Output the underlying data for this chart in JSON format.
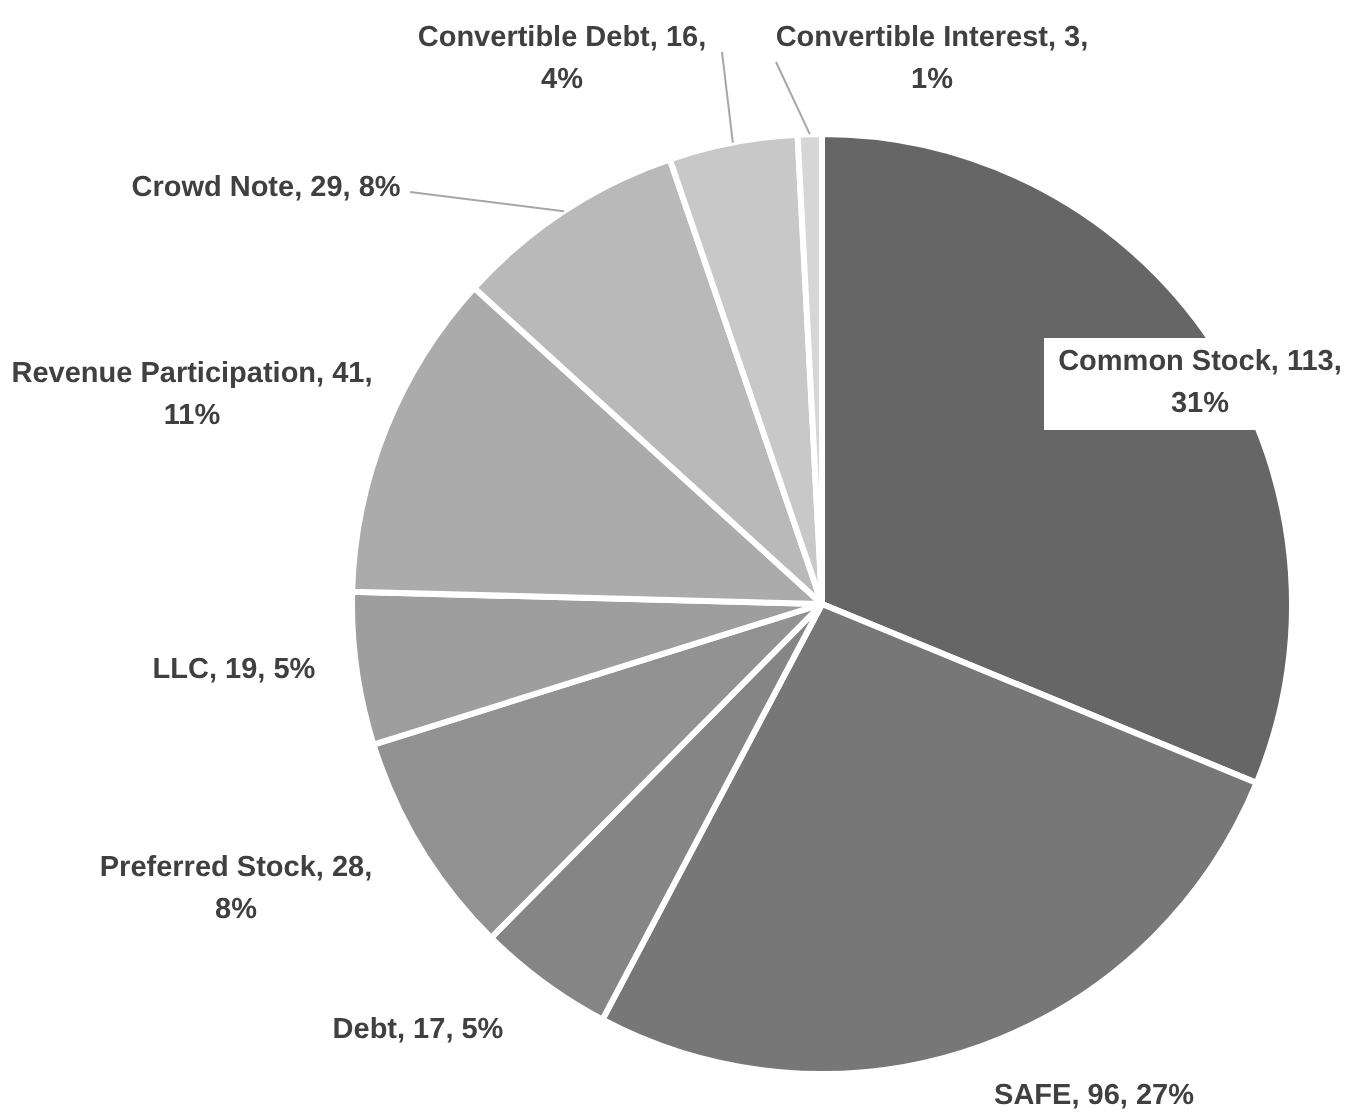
{
  "chart_data": {
    "type": "pie",
    "categories": [
      "Common Stock",
      "SAFE",
      "Debt",
      "Preferred Stock",
      "LLC",
      "Revenue Participation",
      "Crowd Note",
      "Convertible Debt",
      "Convertible Interest"
    ],
    "values": [
      113,
      96,
      17,
      28,
      19,
      41,
      29,
      16,
      3
    ],
    "colors": [
      "#666666",
      "#777777",
      "#858585",
      "#929292",
      "#9e9e9e",
      "#ababab",
      "#b9b9b9",
      "#c8c8c8",
      "#d6d6d6"
    ],
    "value_labels": [
      "113, 31%",
      "96, 27%",
      "17, 5%",
      "28, 8%",
      "19, 5%",
      "41, 11%",
      "29, 8%",
      "16, 4%",
      "3, 1%"
    ]
  }
}
